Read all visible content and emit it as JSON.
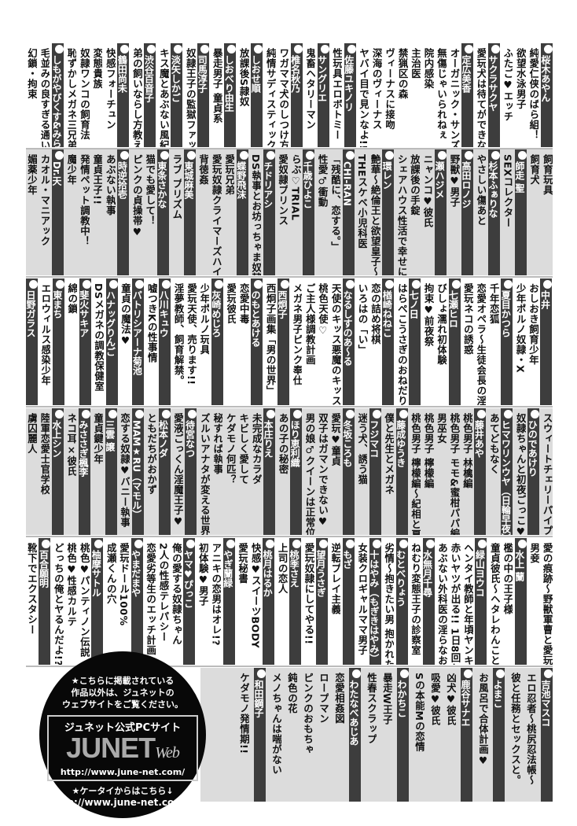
{
  "bands": [
    {
      "background": "white",
      "items": [
        {
          "a": "桜木あやん"
        },
        {
          "t": "純愛仁侠のばら組！"
        },
        {
          "t": "欲望水泳男子"
        },
        {
          "t": "ふたご♥エッチ"
        },
        {
          "a": "サクラサクヤ"
        },
        {
          "t": "愛玩犬は待てができない"
        },
        {
          "a": "定広美香"
        },
        {
          "t": "オーガニック・サンズ"
        },
        {
          "t": "無傷じゃいられねぇ"
        },
        {
          "t": "院内感染"
        },
        {
          "t": "主治医"
        },
        {
          "t": "禁猟区の森"
        },
        {
          "t": "ヴィーナスに接吻"
        },
        {
          "t": "深海のヴィーナス"
        },
        {
          "t": "ヤバイ目で見ンなよ!!"
        },
        {
          "a": "佐藤ユキノリ"
        },
        {
          "t": "性玩具エロボトミー"
        },
        {
          "a": "サングリエ"
        },
        {
          "t": "鬼畜ヘタリーマン"
        },
        {
          "a": "椎名秋乃"
        },
        {
          "t": "ワガママ犬のしつけ方"
        },
        {
          "t": "純情サディスティック"
        },
        {
          "a": "しおせ順"
        },
        {
          "t": "放課後S隷奴"
        },
        {
          "a": "しおべり由生"
        },
        {
          "t": "暴走男子 童貞系"
        },
        {
          "a": "司馬淳子"
        },
        {
          "t": "奴隷王子の監獄ファック!!"
        },
        {
          "a": "淡矢しかご"
        },
        {
          "t": "キス魔とあぶない風紀委員"
        },
        {
          "a": "渋谷百音子"
        },
        {
          "t": "弟の飼いならし方教えます!!"
        },
        {
          "a": "鶴田尚未"
        },
        {
          "t": "快感フォーチュン"
        },
        {
          "t": "変態貴族"
        },
        {
          "t": "奴隷ワンコの飼育法"
        },
        {
          "t": "恥ずかしメガネ三兄弟"
        },
        {
          "a": "しもがやびくす&みらい戻"
        },
        {
          "t": "毛並みの良すぎる通い猫"
        },
        {
          "t": "幻鎖・拘束"
        }
      ]
    },
    {
      "background": "gray",
      "items": [
        {
          "t": "飼育玩具"
        },
        {
          "t": "飼育犬"
        },
        {
          "a": "師走 聖"
        },
        {
          "t": "SEXコレクター"
        },
        {
          "a": "杉本ふぁりな"
        },
        {
          "t": "やさしい傷あと"
        },
        {
          "a": "高田ロノジ"
        },
        {
          "t": "野獣♥男子"
        },
        {
          "a": "瀬ハジメ"
        },
        {
          "t": "ニャンコ♥彼氏"
        },
        {
          "t": "放課後の手錠"
        },
        {
          "t": "シェアハウス性活で幸せになる100の方法"
        },
        {
          "a": "環レン"
        },
        {
          "t": "艶華〜絶倫王と欲望皇子〜"
        },
        {
          "t": "THEスケベ小児科医"
        },
        {
          "a": "CHI-RAN"
        },
        {
          "t": "「残酷に、恋する。」"
        },
        {
          "t": "性愛♂衝動"
        },
        {
          "a": "千歳ひよこ"
        },
        {
          "t": "らぶ♡TRIAL"
        },
        {
          "t": "愛奴隷プリンス"
        },
        {
          "a": "チドリアシ"
        },
        {
          "t": "DS執事とお坊っちゃま奴隷"
        },
        {
          "a": "蝶野飛沫"
        },
        {
          "t": "愛玩兄弟"
        },
        {
          "t": "愛玩奴隷クライマーズハイ！"
        },
        {
          "t": "背徳姦"
        },
        {
          "a": "東城麻美"
        },
        {
          "t": "ラブ プリズム"
        },
        {
          "a": "東条さかな"
        },
        {
          "t": "猫でも愛して！"
        },
        {
          "t": "ピンクの貞操帯♥"
        },
        {
          "a": "時逆拾壱"
        },
        {
          "t": "あぶない執事"
        },
        {
          "t": "童貞王子!!"
        },
        {
          "t": "発情ペット調教中！"
        },
        {
          "t": "魔少年"
        },
        {
          "a": "Dr.天"
        },
        {
          "t": "カオル・マニアック"
        },
        {
          "t": "媚薬少年"
        }
      ]
    },
    {
      "background": "white",
      "items": [
        {
          "a": "中井"
        },
        {
          "t": "おしおき飼育少年"
        },
        {
          "t": "少年ポルノ奴隷・X"
        },
        {
          "a": "夏目かつら"
        },
        {
          "t": "千年恋狐"
        },
        {
          "t": "恋愛オペラ〜生徒会長の淫らな日常〜"
        },
        {
          "t": "愛玩ネコの誘惑"
        },
        {
          "a": "七瀬ヒロ"
        },
        {
          "t": "びしょ濡れ初体験"
        },
        {
          "t": "拘束♥前夜祭"
        },
        {
          "a": "七ノ日"
        },
        {
          "t": "はらぺこうさぎのおねだり"
        },
        {
          "a": "楢崎ねねこ"
        },
        {
          "t": "恋の詰め将棋"
        },
        {
          "t": "いろはの「い」"
        },
        {
          "a": "なるしすのあ〜る"
        },
        {
          "t": "天使のキッス悪魔のキッス"
        },
        {
          "t": "桃色天使♡"
        },
        {
          "t": "ご主人様調教計画"
        },
        {
          "t": "メガネ男子ピンク奉仕"
        },
        {
          "a": "西炯子"
        },
        {
          "t": "西炯子画集「男の世界」"
        },
        {
          "a": "のもとあける"
        },
        {
          "t": "恋愛中毒"
        },
        {
          "t": "愛玩彼氏"
        },
        {
          "a": "灰崎めじろ"
        },
        {
          "t": "少年ポルノ玩具"
        },
        {
          "t": "愛玩天使、売ります!!"
        },
        {
          "t": "淫夢教師、飼育解禁。"
        },
        {
          "a": "八川キュウ"
        },
        {
          "t": "嘘つきKの性事情"
        },
        {
          "a": "パトリシアーナ菊池"
        },
        {
          "t": "童貞の魔法♥"
        },
        {
          "a": "ハナッグりんご"
        },
        {
          "t": "DSメガネの調教保健室"
        },
        {
          "a": "斐火サキア"
        },
        {
          "t": "綿の鎖"
        },
        {
          "a": "東まち"
        },
        {
          "t": "エロウィルス感染少年"
        },
        {
          "a": "日野ガラス"
        }
      ]
    },
    {
      "background": "gray",
      "items": [
        {
          "t": "スウィートチェリーパイプ"
        },
        {
          "a": "ひのであけり"
        },
        {
          "t": "奴隷ちゃんと初夜ごっこ♥"
        },
        {
          "a": "ヒマワリンウヤ（日輪早夜）"
        },
        {
          "t": "あてどもなく"
        },
        {
          "a": "藤井あや"
        },
        {
          "t": "桃色男子 林檎編"
        },
        {
          "t": "桃色男子 モモ&蜜柑パパ編"
        },
        {
          "t": "男巫女"
        },
        {
          "t": "桃色男子 檸檬編"
        },
        {
          "t": "桃色男子 檸檬編〜紀相と夏樹の章〜"
        },
        {
          "a": "藤成ゆうき"
        },
        {
          "t": "僕と先生とメガネ"
        },
        {
          "a": "フジマコ"
        },
        {
          "t": "迷う犬、誘う猫"
        },
        {
          "a": "冬坂ころも"
        },
        {
          "t": "愛玩♥童貞"
        },
        {
          "t": "双子はガマンできない♥"
        },
        {
          "t": "男の娘♂クイーンは正常位がニガテ!?"
        },
        {
          "a": "ほり恵利織"
        },
        {
          "t": "あの子の秘密"
        },
        {
          "a": "本庄りえ"
        },
        {
          "t": "未完成なカラダ"
        },
        {
          "t": "キビしく愛して"
        },
        {
          "t": "ケダモノ何匹？"
        },
        {
          "t": "秘すれば執事"
        },
        {
          "t": "ズルいアナタが変える世界"
        },
        {
          "a": "待宮なつ"
        },
        {
          "t": "愛液ごっくん淫魔王子♥"
        },
        {
          "a": "松本ノダ"
        },
        {
          "t": "ともだちがおかず"
        },
        {
          "a": "MAM★RU（マモル）"
        },
        {
          "t": "恋する奴隷♥バニー執事"
        },
        {
          "a": "三雲 譲"
        },
        {
          "t": "童貞鍵少年"
        },
        {
          "a": "みささぎ楓李"
        },
        {
          "t": "ネコ耳×彼氏"
        },
        {
          "a": "水上シン"
        },
        {
          "t": "陸軍恋愛士官学校"
        },
        {
          "t": "虜囚麗人"
        }
      ]
    },
    {
      "background": "white",
      "items": [
        {
          "t": "愛の痕跡〜野獣軍曹と愛玩軍医〜"
        },
        {
          "t": "男妾"
        },
        {
          "a": "水上 蘭"
        },
        {
          "t": "檻の中の王子様"
        },
        {
          "t": "童貞彼氏〜ヘタレわんことツンデレ王子〜"
        },
        {
          "a": "緑山ヨウコ"
        },
        {
          "t": "ヘンタイ教師と年頃ヤンキー 指導の心得"
        },
        {
          "t": "赤いヤツが出る!! 1日8回ヤる男"
        },
        {
          "t": "あぶない外科医の淫らなお注射♥"
        },
        {
          "a": "水無月千尋"
        },
        {
          "t": "ねむり変態王子の診察室"
        },
        {
          "a": "むとべりょう"
        },
        {
          "t": "劣情〜抱きたい男 抱かれたい男〜"
        },
        {
          "a": "十はやみ（もぎきはやみ）"
        },
        {
          "t": "女装クロギャルママ男子"
        },
        {
          "a": "もざ"
        },
        {
          "t": "逆転プレイ主義"
        },
        {
          "a": "望月うさぎ"
        },
        {
          "t": "愛玩奴隷にしてやる!!"
        },
        {
          "a": "桃季さえ"
        },
        {
          "t": "上司の恋人"
        },
        {
          "a": "桃月はるか"
        },
        {
          "t": "快感♥スイーツBODY"
        },
        {
          "t": "愛玩秘書"
        },
        {
          "a": "やぎ蘭緑"
        },
        {
          "t": "アニキの恋男はオレ!?"
        },
        {
          "t": "初体験♥男子"
        },
        {
          "a": "ヤマ♥ぴっこ"
        },
        {
          "t": "俺の愛する奴隷ちゃん"
        },
        {
          "t": "2人の性感テレパシー"
        },
        {
          "t": "恋愛劣等生のエッチ計画"
        },
        {
          "a": "やまだまや"
        },
        {
          "t": "愛玩ドール100%"
        },
        {
          "t": "成瀬くんの穴"
        },
        {
          "a": "柚摩サトル"
        },
        {
          "t": "桃色♥パンティノン伝説"
        },
        {
          "t": "桃色♥性感カルテ"
        },
        {
          "t": "どっちの俺とヤるんだよ!?"
        },
        {
          "a": "百合願明"
        },
        {
          "t": "靴下でエクスタシー"
        }
      ]
    },
    {
      "background": "gray",
      "items": [
        {
          "a": "吉池マスコ"
        },
        {
          "t": "エロ忍者〜桃尻忍法帳〜"
        },
        {
          "t": "彼と任務とセックスと。"
        },
        {
          "a": "よまこ"
        },
        {
          "t": "お風呂で合体計画♥"
        },
        {
          "a": "鹿谷サナエ"
        },
        {
          "t": "凶犬♥彼氏"
        },
        {
          "t": "吸愛♥彼氏"
        },
        {
          "t": "Sの本能Mの恋情"
        },
        {
          "a": "わかちこ"
        },
        {
          "t": "暴走W王子"
        },
        {
          "t": "性春スクラップ"
        },
        {
          "a": "わたなべあじあ"
        },
        {
          "t": "恋愛相姦図"
        },
        {
          "t": "ロープマン"
        },
        {
          "t": "ピンクのおもちゃ"
        },
        {
          "t": "鈍色の花"
        },
        {
          "t": "メノちゃんは喘がない"
        },
        {
          "a": "和田鋼子"
        },
        {
          "t": "ケダモノ発情期!!"
        }
      ]
    }
  ],
  "ad": {
    "note_lines": [
      "★こちらに掲載されている",
      "作品以外は、ジュネットの",
      "ウェブサイトをご覧ください。"
    ],
    "box_title": "ジュネット公式PCサイト",
    "logo_main": "JUNET",
    "logo_sub": "Web",
    "pc_url": "http://www.june-net.com/",
    "mobile_label": "★ケータイからはこちら↓",
    "mobile_url": "http://www.june-net.com/i/"
  },
  "colors": {
    "author_bar": "#3d3d3d",
    "band_gray": "#dcdcdc",
    "ad_bg": "#080808"
  }
}
